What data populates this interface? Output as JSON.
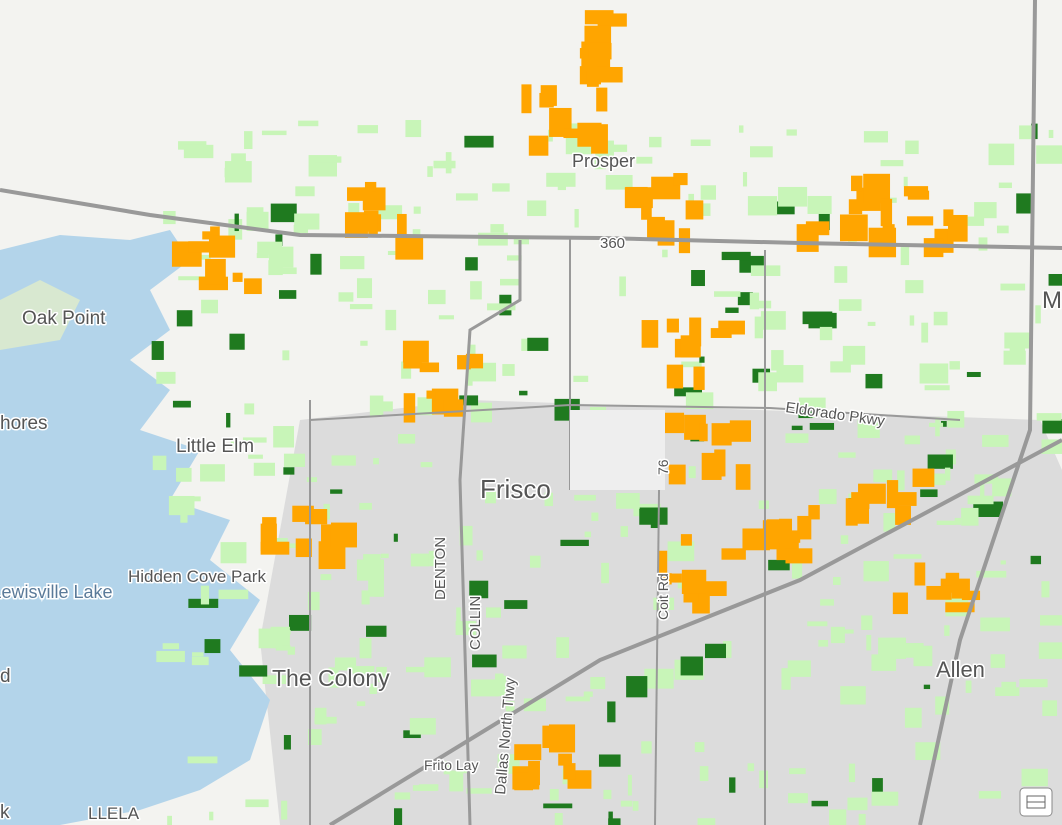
{
  "labels": {
    "oak_point": "Oak Point",
    "prosper": "Prosper",
    "highway_360": "360",
    "little_elm": "Little Elm",
    "shores": "hores",
    "frisco": "Frisco",
    "lewisville_lake": "Lewisville Lake",
    "hidden_cove_park": "Hidden Cove Park",
    "the_colony": "The Colony",
    "allen": "Allen",
    "llela": "LLELA",
    "tollway": "Dallas North Tlwy",
    "denton": "DENTON",
    "collin": "COLLIN",
    "eldorado": "Eldorado Pkwy",
    "coit": "Coit Rd",
    "frito_lay": "Frito Lay",
    "edge_m": "M",
    "edge_d": "d",
    "edge_k": "k",
    "road_76": "76"
  }
}
